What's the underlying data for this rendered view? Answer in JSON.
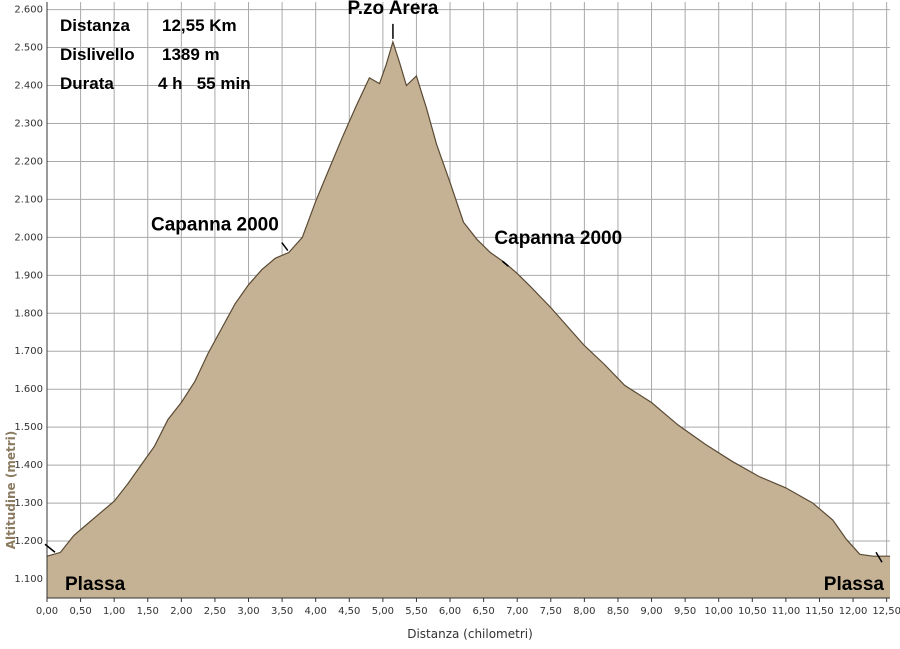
{
  "stats": [
    {
      "label": "Distanza",
      "value": "12,55 Km"
    },
    {
      "label": "Dislivello",
      "value": "1389 m"
    },
    {
      "label": "Durata",
      "value": "4 h   55 min"
    }
  ],
  "chart_data": {
    "type": "area",
    "xlabel": "Distanza (chilometri)",
    "ylabel": "Altitudine (metri)",
    "xlim": [
      0,
      12.55
    ],
    "ylim": [
      1050,
      2620
    ],
    "grid": true,
    "x_ticks": [
      "0,00",
      "0,50",
      "1,00",
      "1,50",
      "2,00",
      "2,50",
      "3,00",
      "3,50",
      "4,00",
      "4,50",
      "5,00",
      "5,50",
      "6,00",
      "6,50",
      "7,00",
      "7,50",
      "8,00",
      "8,50",
      "9,00",
      "9,50",
      "10,00",
      "10,50",
      "11,00",
      "11,50",
      "12,00",
      "12,50"
    ],
    "y_ticks": [
      "1.100",
      "1.200",
      "1.300",
      "1.400",
      "1.500",
      "1.600",
      "1.700",
      "1.800",
      "1.900",
      "2.000",
      "2.100",
      "2.200",
      "2.300",
      "2.400",
      "2.500",
      "2.600"
    ],
    "y_tick_values": [
      1100,
      1200,
      1300,
      1400,
      1500,
      1600,
      1700,
      1800,
      1900,
      2000,
      2100,
      2200,
      2300,
      2400,
      2500,
      2600
    ],
    "x": [
      0,
      0.2,
      0.4,
      0.6,
      0.8,
      1.0,
      1.2,
      1.4,
      1.6,
      1.8,
      2.0,
      2.2,
      2.4,
      2.6,
      2.8,
      3.0,
      3.2,
      3.4,
      3.6,
      3.8,
      4.0,
      4.2,
      4.4,
      4.6,
      4.8,
      4.95,
      5.05,
      5.15,
      5.25,
      5.35,
      5.5,
      5.65,
      5.8,
      6.0,
      6.2,
      6.4,
      6.6,
      6.8,
      7.0,
      7.2,
      7.5,
      7.8,
      8.0,
      8.3,
      8.6,
      9.0,
      9.4,
      9.8,
      10.2,
      10.6,
      11.0,
      11.4,
      11.7,
      11.9,
      12.1,
      12.3,
      12.55
    ],
    "y": [
      1160,
      1170,
      1215,
      1245,
      1275,
      1305,
      1350,
      1400,
      1450,
      1520,
      1565,
      1620,
      1695,
      1760,
      1825,
      1875,
      1915,
      1945,
      1960,
      2000,
      2095,
      2180,
      2265,
      2345,
      2420,
      2405,
      2455,
      2515,
      2460,
      2400,
      2425,
      2340,
      2245,
      2145,
      2040,
      1995,
      1960,
      1935,
      1905,
      1870,
      1815,
      1755,
      1715,
      1665,
      1610,
      1565,
      1505,
      1455,
      1410,
      1370,
      1340,
      1300,
      1255,
      1205,
      1165,
      1160,
      1160
    ],
    "annotations": [
      {
        "text": "P.zo Arera",
        "x": 5.15,
        "y": 2515
      },
      {
        "text": "Capanna 2000",
        "x": 3.6,
        "y": 1960
      },
      {
        "text": "Capanna 2000",
        "x": 6.75,
        "y": 1945
      },
      {
        "text": "Plassa",
        "x": 0.0,
        "y": 1160
      },
      {
        "text": "Plassa",
        "x": 12.55,
        "y": 1160
      }
    ],
    "colors": {
      "fill": "#c5b295",
      "line": "#5a4a34",
      "grid": "#a9a9a9",
      "background": "#ffffff"
    }
  }
}
